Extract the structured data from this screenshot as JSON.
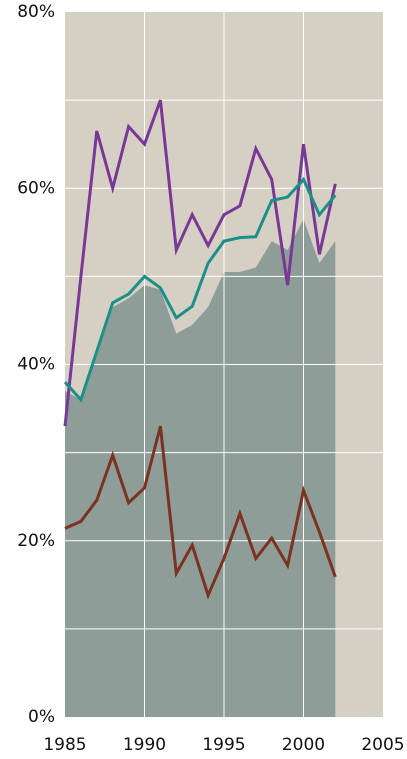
{
  "chart_data": {
    "type": "line",
    "x": [
      1985,
      1986,
      1987,
      1988,
      1989,
      1990,
      1991,
      1992,
      1993,
      1994,
      1995,
      1996,
      1997,
      1998,
      1999,
      2000,
      2001,
      2002
    ],
    "series": [
      {
        "kind": "area",
        "color": "#8e9d97",
        "values": [
          37,
          36,
          41,
          46.5,
          47.5,
          49,
          48.5,
          43.5,
          44.5,
          46.5,
          50.5,
          50.5,
          51,
          54,
          53,
          56.5,
          51.5,
          54
        ]
      },
      {
        "color": "#7a3896",
        "values": [
          33,
          50,
          66.5,
          60,
          67,
          65,
          70,
          53,
          57,
          53.5,
          57,
          58,
          64.5,
          61,
          49,
          65,
          52.5,
          60.5
        ]
      },
      {
        "color": "#1b8f8a",
        "values": [
          38,
          36,
          41.5,
          47,
          48,
          50,
          48.7,
          45.3,
          46.6,
          51.5,
          54,
          54.4,
          54.5,
          58.6,
          59,
          61,
          57,
          59.2
        ]
      },
      {
        "color": "#7c3220",
        "values": [
          21.4,
          22.2,
          24.6,
          29.7,
          24.3,
          26,
          33,
          16.3,
          19.5,
          13.8,
          18,
          23.1,
          18,
          20.3,
          17.2,
          25.7,
          21,
          15.9
        ]
      }
    ],
    "xlim": [
      1985,
      2005
    ],
    "xticks": [
      1985,
      1990,
      1995,
      2000,
      2005
    ],
    "ylim": [
      0,
      80
    ],
    "yticks": [
      {
        "value": 0,
        "label": "0%"
      },
      {
        "value": 20,
        "label": "20%"
      },
      {
        "value": 40,
        "label": "40%"
      },
      {
        "value": 60,
        "label": "60%"
      },
      {
        "value": 80,
        "label": "80%"
      }
    ],
    "minor_yticks": [
      10,
      30,
      50,
      70
    ],
    "grid": true,
    "background": "#d6cfc3"
  }
}
